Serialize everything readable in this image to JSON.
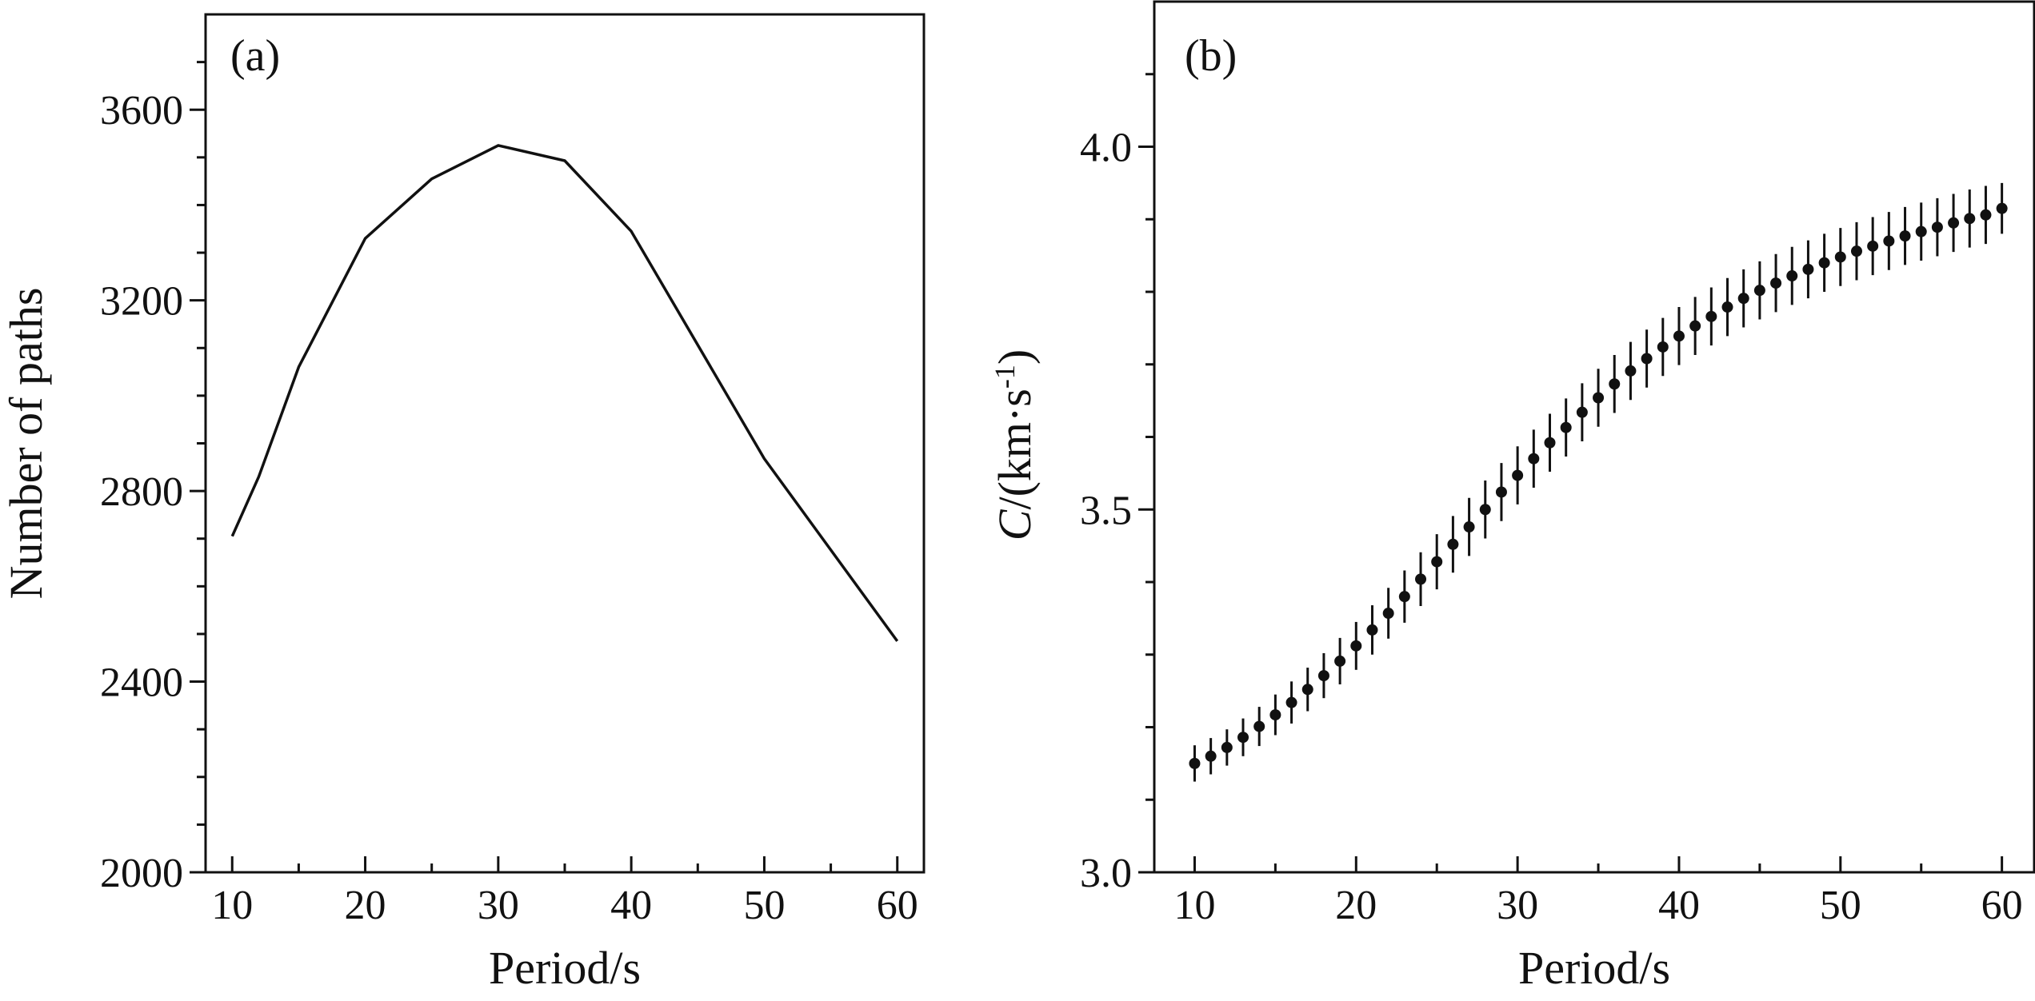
{
  "chart_data": [
    {
      "type": "line",
      "panel_label": "(a)",
      "xlabel": "Period/s",
      "ylabel": "Number of paths",
      "xlim": [
        8,
        62
      ],
      "ylim": [
        2000,
        3800
      ],
      "x_ticks": [
        10,
        20,
        30,
        40,
        50,
        60
      ],
      "x_tick_labels": [
        "10",
        "20",
        "30",
        "40",
        "50",
        "60"
      ],
      "x_minor_ticks": [
        15,
        25,
        35,
        45,
        55
      ],
      "y_ticks": [
        2000,
        2400,
        2800,
        3200,
        3600
      ],
      "y_tick_labels": [
        "2000",
        "2400",
        "2800",
        "3200",
        "3600"
      ],
      "y_minor_ticks": [
        2100,
        2200,
        2300,
        2500,
        2600,
        2700,
        2900,
        3000,
        3100,
        3300,
        3400,
        3500,
        3700
      ],
      "grid": false,
      "series": [
        {
          "x": [
            10,
            12,
            15,
            20,
            25,
            30,
            35,
            40,
            50,
            60
          ],
          "y": [
            2705,
            2830,
            3060,
            3330,
            3455,
            3525,
            3493,
            3345,
            2868,
            2485
          ]
        }
      ]
    },
    {
      "type": "scatter",
      "panel_label": "(b)",
      "xlabel": "Period/s",
      "ylabel_italic": "C",
      "ylabel_rest": "/(km·s",
      "ylabel_sup": "-1",
      "ylabel_close": ")",
      "xlim": [
        7.5,
        62
      ],
      "ylim": [
        3.0,
        4.2
      ],
      "x_ticks": [
        10,
        20,
        30,
        40,
        50,
        60
      ],
      "x_tick_labels": [
        "10",
        "20",
        "30",
        "40",
        "50",
        "60"
      ],
      "x_minor_ticks": [
        15,
        25,
        35,
        45,
        55
      ],
      "y_ticks": [
        3.0,
        3.5,
        4.0
      ],
      "y_tick_labels": [
        "3.0",
        "3.5",
        "4.0"
      ],
      "y_minor_ticks": [
        3.1,
        3.2,
        3.3,
        3.4,
        3.6,
        3.7,
        3.8,
        3.9,
        4.1
      ],
      "grid": false,
      "series": [
        {
          "x": [
            10,
            11,
            12,
            13,
            14,
            15,
            16,
            17,
            18,
            19,
            20,
            21,
            22,
            23,
            24,
            25,
            26,
            27,
            28,
            29,
            30,
            31,
            32,
            33,
            34,
            35,
            36,
            37,
            38,
            39,
            40,
            41,
            42,
            43,
            44,
            45,
            46,
            47,
            48,
            49,
            50,
            51,
            52,
            53,
            54,
            55,
            56,
            57,
            58,
            59,
            60
          ],
          "y": [
            3.15,
            3.16,
            3.172,
            3.186,
            3.201,
            3.217,
            3.234,
            3.252,
            3.271,
            3.291,
            3.312,
            3.334,
            3.357,
            3.38,
            3.404,
            3.428,
            3.452,
            3.476,
            3.5,
            3.524,
            3.547,
            3.57,
            3.592,
            3.613,
            3.634,
            3.654,
            3.673,
            3.691,
            3.708,
            3.724,
            3.739,
            3.753,
            3.766,
            3.779,
            3.791,
            3.802,
            3.812,
            3.822,
            3.831,
            3.84,
            3.848,
            3.856,
            3.863,
            3.87,
            3.877,
            3.883,
            3.889,
            3.895,
            3.901,
            3.906,
            3.915
          ],
          "error": [
            0.025,
            0.025,
            0.025,
            0.026,
            0.027,
            0.028,
            0.029,
            0.03,
            0.031,
            0.032,
            0.033,
            0.034,
            0.035,
            0.036,
            0.037,
            0.038,
            0.039,
            0.04,
            0.04,
            0.04,
            0.04,
            0.04,
            0.04,
            0.04,
            0.04,
            0.04,
            0.04,
            0.04,
            0.04,
            0.04,
            0.04,
            0.04,
            0.04,
            0.04,
            0.04,
            0.04,
            0.04,
            0.04,
            0.04,
            0.04,
            0.04,
            0.04,
            0.04,
            0.04,
            0.04,
            0.04,
            0.04,
            0.04,
            0.04,
            0.04,
            0.035
          ]
        }
      ]
    }
  ]
}
